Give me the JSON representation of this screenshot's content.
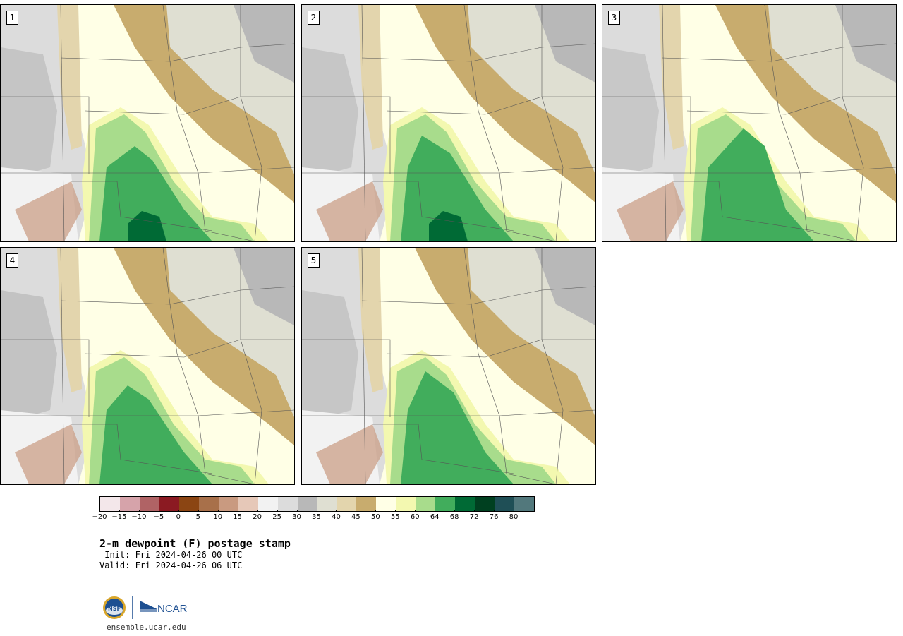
{
  "panels": [
    {
      "label": "1"
    },
    {
      "label": "2"
    },
    {
      "label": "3"
    },
    {
      "label": "4"
    },
    {
      "label": "5"
    }
  ],
  "colorbar": {
    "colors": [
      "#f3e7ea",
      "#d6a3aa",
      "#b06365",
      "#8b1a22",
      "#8b4513",
      "#a8704a",
      "#c99a80",
      "#e6c8b8",
      "#f2f2f2",
      "#dcdcdc",
      "#b8b8b8",
      "#dfdfd2",
      "#e3d5ad",
      "#c8ac6e",
      "#ffffe6",
      "#f3f8b0",
      "#a8dc8c",
      "#41ad5c",
      "#006a35",
      "#004020",
      "#1f4f56",
      "#52787c"
    ],
    "tick_labels": [
      "−20",
      "−15",
      "−10",
      "−5",
      "0",
      "5",
      "10",
      "15",
      "20",
      "25",
      "30",
      "35",
      "40",
      "45",
      "50",
      "55",
      "60",
      "64",
      "68",
      "72",
      "76",
      "80"
    ]
  },
  "title": "2-m dewpoint (F) postage stamp",
  "init": " Init: Fri 2024-04-26 00 UTC",
  "valid": "Valid: Fri 2024-04-26 06 UTC",
  "logos": {
    "nsf": "NSF",
    "ncar": "NCAR"
  },
  "url": "ensemble.ucar.edu"
}
